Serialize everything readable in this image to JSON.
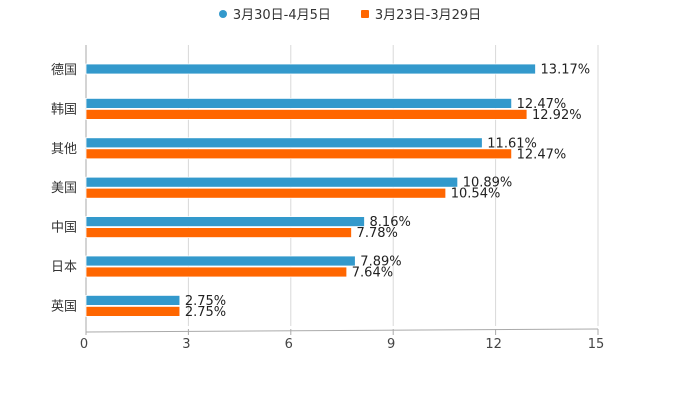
{
  "chart_data": {
    "type": "bar",
    "orientation": "horizontal",
    "categories": [
      "德国",
      "韩国",
      "其他",
      "美国",
      "中国",
      "日本",
      "英国"
    ],
    "series": [
      {
        "name": "3月30日-4月5日",
        "color": "#3399cc",
        "values": [
          13.17,
          12.47,
          11.61,
          10.89,
          8.16,
          7.89,
          2.75
        ]
      },
      {
        "name": "3月23日-3月29日",
        "color": "#ff6600",
        "values": [
          null,
          12.92,
          12.47,
          10.54,
          7.78,
          7.64,
          2.75
        ]
      }
    ],
    "value_suffix": "%",
    "xlim": [
      0,
      15
    ],
    "xticks": [
      0,
      3,
      6,
      9,
      12,
      15
    ],
    "grid": true,
    "legend_position": "top-center"
  }
}
